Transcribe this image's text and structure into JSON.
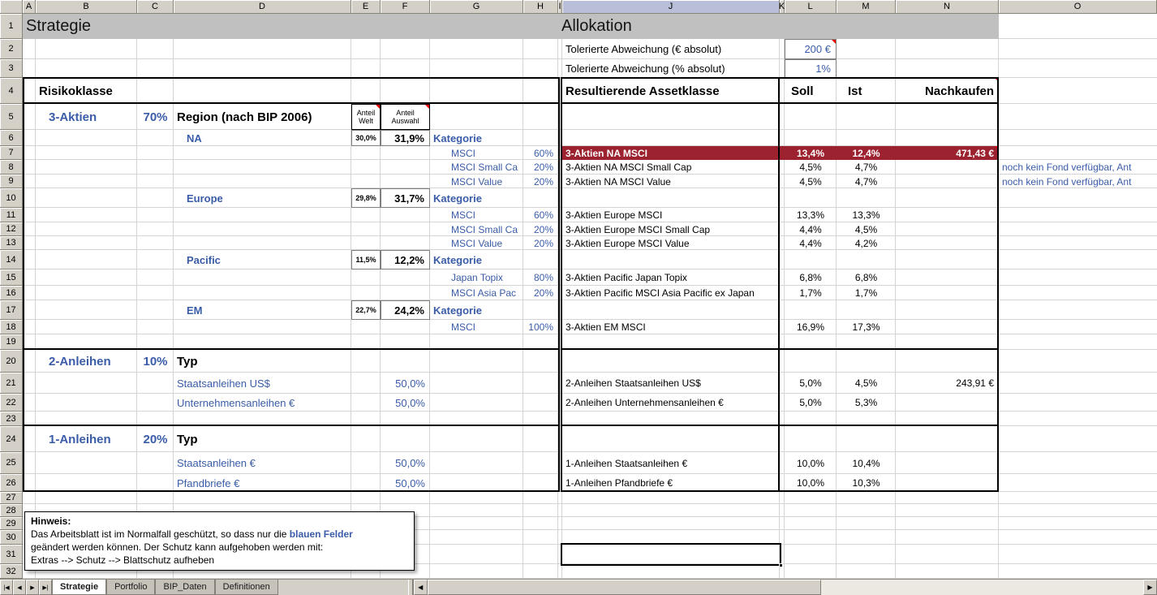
{
  "colors": {
    "accent_red": "#9C2230",
    "input_blue": "#3A5CA8",
    "band_gray": "#C0C0C0",
    "header_gray": "#D4D0C8",
    "selected_header_blue": "#B9BFD9",
    "grid_line": "#D4D4D4",
    "comment_red": "#E80000"
  },
  "sheet": {
    "col_headers": [
      "A",
      "B",
      "C",
      "D",
      "E",
      "F",
      "G",
      "H",
      "I",
      "J",
      "K",
      "L",
      "M",
      "N",
      "O"
    ],
    "selected_col": "J",
    "row_count": 32,
    "active_cell": "J31",
    "cells": [
      {
        "r": 1,
        "c": "A",
        "e": "H",
        "t": "Strategie",
        "cls": "title band"
      },
      {
        "r": 1,
        "c": "I",
        "e": "N",
        "t": "Allokation",
        "cls": "title band"
      },
      {
        "r": 2,
        "c": "J",
        "t": "Tolerierte Abweichung (€ absolut)",
        "cls": "med"
      },
      {
        "r": 2,
        "c": "L",
        "t": "200 €",
        "cls": "med blue right boxgray",
        "comment": true
      },
      {
        "r": 3,
        "c": "J",
        "t": "Tolerierte Abweichung (% absolut)",
        "cls": "med"
      },
      {
        "r": 3,
        "c": "L",
        "t": "1%",
        "cls": "med blue right boxgray"
      },
      {
        "r": 4,
        "c": "B",
        "t": "Risikoklasse",
        "cls": "big bold"
      },
      {
        "r": 4,
        "c": "J",
        "t": "Resultierende Assetklasse",
        "cls": "big bold"
      },
      {
        "r": 4,
        "c": "L",
        "t": "Soll",
        "cls": "big bold pl8"
      },
      {
        "r": 4,
        "c": "M",
        "t": "Ist",
        "cls": "big bold pl14"
      },
      {
        "r": 4,
        "c": "N",
        "t": "Nachkaufen",
        "cls": "big bold right",
        "comment": true
      },
      {
        "r": 5,
        "c": "B",
        "t": "3-Aktien",
        "cls": "big bold blue ind1"
      },
      {
        "r": 5,
        "c": "C",
        "t": "70%",
        "cls": "big bold blue center"
      },
      {
        "r": 5,
        "c": "D",
        "t": "Region (nach BIP 2006)",
        "cls": "big bold"
      },
      {
        "r": 5,
        "c": "E",
        "t": "Anteil\nWelt",
        "cls": "tiny wrap center boxdark",
        "comment": true
      },
      {
        "r": 5,
        "c": "F",
        "t": "Anteil\nAuswahl",
        "cls": "tiny wrap center boxdark",
        "comment": true
      },
      {
        "r": 6,
        "c": "D",
        "t": "NA",
        "cls": "med bold blue ind1"
      },
      {
        "r": 6,
        "c": "E",
        "t": "30,0%",
        "cls": "tiny bold center boxgray"
      },
      {
        "r": 6,
        "c": "F",
        "t": "31,9%",
        "cls": "med bold right boxgray"
      },
      {
        "r": 6,
        "c": "G",
        "t": "Kategorie",
        "cls": "med bold blue"
      },
      {
        "r": 7,
        "c": "G",
        "t": "MSCI",
        "cls": "sm blue indent"
      },
      {
        "r": 7,
        "c": "H",
        "t": "60%",
        "cls": "sm blue right"
      },
      {
        "r": 7,
        "c": "J",
        "e": "N",
        "t": "",
        "cls": "redbg"
      },
      {
        "r": 7,
        "c": "J",
        "t": "3-Aktien NA MSCI",
        "cls": "sm bold white"
      },
      {
        "r": 7,
        "c": "L",
        "t": "13,4%",
        "cls": "sm bold white center"
      },
      {
        "r": 7,
        "c": "M",
        "t": "12,4%",
        "cls": "sm bold white center"
      },
      {
        "r": 7,
        "c": "N",
        "t": "471,43 €",
        "cls": "sm bold white right",
        "comment": true
      },
      {
        "r": 8,
        "c": "G",
        "t": "MSCI Small Ca",
        "cls": "sm blue indent"
      },
      {
        "r": 8,
        "c": "H",
        "t": "20%",
        "cls": "sm blue right"
      },
      {
        "r": 8,
        "c": "J",
        "t": "3-Aktien NA MSCI Small Cap",
        "cls": "sm"
      },
      {
        "r": 8,
        "c": "L",
        "t": "4,5%",
        "cls": "sm center"
      },
      {
        "r": 8,
        "c": "M",
        "t": "4,7%",
        "cls": "sm center"
      },
      {
        "r": 8,
        "c": "O",
        "t": "noch kein Fond verfügbar, Ant",
        "cls": "sm blue"
      },
      {
        "r": 9,
        "c": "G",
        "t": "MSCI Value",
        "cls": "sm blue indent"
      },
      {
        "r": 9,
        "c": "H",
        "t": "20%",
        "cls": "sm blue right"
      },
      {
        "r": 9,
        "c": "J",
        "t": "3-Aktien NA MSCI Value",
        "cls": "sm"
      },
      {
        "r": 9,
        "c": "L",
        "t": "4,5%",
        "cls": "sm center"
      },
      {
        "r": 9,
        "c": "M",
        "t": "4,7%",
        "cls": "sm center"
      },
      {
        "r": 9,
        "c": "O",
        "t": "noch kein Fond verfügbar, Ant",
        "cls": "sm blue"
      },
      {
        "r": 10,
        "c": "D",
        "t": "Europe",
        "cls": "med bold blue ind1"
      },
      {
        "r": 10,
        "c": "E",
        "t": "29,8%",
        "cls": "tiny bold center boxgray"
      },
      {
        "r": 10,
        "c": "F",
        "t": "31,7%",
        "cls": "med bold right boxgray"
      },
      {
        "r": 10,
        "c": "G",
        "t": "Kategorie",
        "cls": "med bold blue"
      },
      {
        "r": 11,
        "c": "G",
        "t": "MSCI",
        "cls": "sm blue indent"
      },
      {
        "r": 11,
        "c": "H",
        "t": "60%",
        "cls": "sm blue right"
      },
      {
        "r": 11,
        "c": "J",
        "t": "3-Aktien Europe MSCI",
        "cls": "sm"
      },
      {
        "r": 11,
        "c": "L",
        "t": "13,3%",
        "cls": "sm center"
      },
      {
        "r": 11,
        "c": "M",
        "t": "13,3%",
        "cls": "sm center"
      },
      {
        "r": 12,
        "c": "G",
        "t": "MSCI Small Ca",
        "cls": "sm blue indent"
      },
      {
        "r": 12,
        "c": "H",
        "t": "20%",
        "cls": "sm blue right"
      },
      {
        "r": 12,
        "c": "J",
        "t": "3-Aktien Europe MSCI Small Cap",
        "cls": "sm"
      },
      {
        "r": 12,
        "c": "L",
        "t": "4,4%",
        "cls": "sm center"
      },
      {
        "r": 12,
        "c": "M",
        "t": "4,5%",
        "cls": "sm center"
      },
      {
        "r": 13,
        "c": "G",
        "t": "MSCI Value",
        "cls": "sm blue indent"
      },
      {
        "r": 13,
        "c": "H",
        "t": "20%",
        "cls": "sm blue right"
      },
      {
        "r": 13,
        "c": "J",
        "t": "3-Aktien Europe MSCI Value",
        "cls": "sm"
      },
      {
        "r": 13,
        "c": "L",
        "t": "4,4%",
        "cls": "sm center"
      },
      {
        "r": 13,
        "c": "M",
        "t": "4,2%",
        "cls": "sm center"
      },
      {
        "r": 14,
        "c": "D",
        "t": "Pacific",
        "cls": "med bold blue ind1"
      },
      {
        "r": 14,
        "c": "E",
        "t": "11,5%",
        "cls": "tiny bold center boxgray"
      },
      {
        "r": 14,
        "c": "F",
        "t": "12,2%",
        "cls": "med bold right boxgray"
      },
      {
        "r": 14,
        "c": "G",
        "t": "Kategorie",
        "cls": "med bold blue"
      },
      {
        "r": 15,
        "c": "G",
        "t": "Japan Topix",
        "cls": "sm blue indent"
      },
      {
        "r": 15,
        "c": "H",
        "t": "80%",
        "cls": "sm blue right"
      },
      {
        "r": 15,
        "c": "J",
        "t": "3-Aktien Pacific Japan Topix",
        "cls": "sm"
      },
      {
        "r": 15,
        "c": "L",
        "t": "6,8%",
        "cls": "sm center"
      },
      {
        "r": 15,
        "c": "M",
        "t": "6,8%",
        "cls": "sm center"
      },
      {
        "r": 16,
        "c": "G",
        "t": "MSCI Asia Pac",
        "cls": "sm blue indent"
      },
      {
        "r": 16,
        "c": "H",
        "t": "20%",
        "cls": "sm blue right"
      },
      {
        "r": 16,
        "c": "J",
        "t": "3-Aktien Pacific MSCI Asia Pacific ex Japan",
        "cls": "sm"
      },
      {
        "r": 16,
        "c": "L",
        "t": "1,7%",
        "cls": "sm center"
      },
      {
        "r": 16,
        "c": "M",
        "t": "1,7%",
        "cls": "sm center"
      },
      {
        "r": 17,
        "c": "D",
        "t": "EM",
        "cls": "med bold blue ind1"
      },
      {
        "r": 17,
        "c": "E",
        "t": "22,7%",
        "cls": "tiny bold center boxgray"
      },
      {
        "r": 17,
        "c": "F",
        "t": "24,2%",
        "cls": "med bold right boxgray"
      },
      {
        "r": 17,
        "c": "G",
        "t": "Kategorie",
        "cls": "med bold blue"
      },
      {
        "r": 18,
        "c": "G",
        "t": "MSCI",
        "cls": "sm blue indent"
      },
      {
        "r": 18,
        "c": "H",
        "t": "100%",
        "cls": "sm blue right"
      },
      {
        "r": 18,
        "c": "J",
        "t": "3-Aktien EM MSCI",
        "cls": "sm"
      },
      {
        "r": 18,
        "c": "L",
        "t": "16,9%",
        "cls": "sm center"
      },
      {
        "r": 18,
        "c": "M",
        "t": "17,3%",
        "cls": "sm center"
      },
      {
        "r": 20,
        "c": "B",
        "t": "2-Anleihen",
        "cls": "big bold blue ind1"
      },
      {
        "r": 20,
        "c": "C",
        "t": "10%",
        "cls": "big bold blue center"
      },
      {
        "r": 20,
        "c": "D",
        "t": "Typ",
        "cls": "big bold"
      },
      {
        "r": 21,
        "c": "D",
        "t": "Staatsanleihen US$",
        "cls": "med blue"
      },
      {
        "r": 21,
        "c": "F",
        "t": "50,0%",
        "cls": "med blue right"
      },
      {
        "r": 21,
        "c": "J",
        "t": "2-Anleihen Staatsanleihen US$",
        "cls": "sm"
      },
      {
        "r": 21,
        "c": "L",
        "t": "5,0%",
        "cls": "sm center"
      },
      {
        "r": 21,
        "c": "M",
        "t": "4,5%",
        "cls": "sm center"
      },
      {
        "r": 21,
        "c": "N",
        "t": "243,91 €",
        "cls": "sm right"
      },
      {
        "r": 22,
        "c": "D",
        "t": "Unternehmensanleihen €",
        "cls": "med blue"
      },
      {
        "r": 22,
        "c": "F",
        "t": "50,0%",
        "cls": "med blue right"
      },
      {
        "r": 22,
        "c": "J",
        "t": "2-Anleihen Unternehmensanleihen €",
        "cls": "sm"
      },
      {
        "r": 22,
        "c": "L",
        "t": "5,0%",
        "cls": "sm center"
      },
      {
        "r": 22,
        "c": "M",
        "t": "5,3%",
        "cls": "sm center"
      },
      {
        "r": 24,
        "c": "B",
        "t": "1-Anleihen",
        "cls": "big bold blue ind1"
      },
      {
        "r": 24,
        "c": "C",
        "t": "20%",
        "cls": "big bold blue center"
      },
      {
        "r": 24,
        "c": "D",
        "t": "Typ",
        "cls": "big bold"
      },
      {
        "r": 25,
        "c": "D",
        "t": "Staatsanleihen €",
        "cls": "med blue"
      },
      {
        "r": 25,
        "c": "F",
        "t": "50,0%",
        "cls": "med blue right"
      },
      {
        "r": 25,
        "c": "J",
        "t": "1-Anleihen Staatsanleihen €",
        "cls": "sm"
      },
      {
        "r": 25,
        "c": "L",
        "t": "10,0%",
        "cls": "sm center"
      },
      {
        "r": 25,
        "c": "M",
        "t": "10,4%",
        "cls": "sm center"
      },
      {
        "r": 26,
        "c": "D",
        "t": "Pfandbriefe €",
        "cls": "med blue"
      },
      {
        "r": 26,
        "c": "F",
        "t": "50,0%",
        "cls": "med blue right"
      },
      {
        "r": 26,
        "c": "J",
        "t": "1-Anleihen Pfandbriefe €",
        "cls": "sm"
      },
      {
        "r": 26,
        "c": "L",
        "t": "10,0%",
        "cls": "sm center"
      },
      {
        "r": 26,
        "c": "M",
        "t": "10,3%",
        "cls": "sm center"
      }
    ]
  },
  "note": {
    "title": "Hinweis:",
    "line1_pre": "Das Arbeitsblatt ist im Normalfall geschützt, so dass nur die ",
    "line1_em": "blauen Felder",
    "line2": "geändert werden können. Der Schutz kann aufgehoben werden mit:",
    "line3": "Extras --> Schutz --> Blattschutz aufheben"
  },
  "tabbar": {
    "nav": [
      "|◀",
      "◀",
      "▶",
      "▶|"
    ],
    "tabs": [
      {
        "label": "Strategie",
        "active": true
      },
      {
        "label": "Portfolio",
        "active": false
      },
      {
        "label": "BIP_Daten",
        "active": false
      },
      {
        "label": "Definitionen",
        "active": false
      }
    ],
    "scroll_left": "◀",
    "scroll_right": "▶"
  }
}
